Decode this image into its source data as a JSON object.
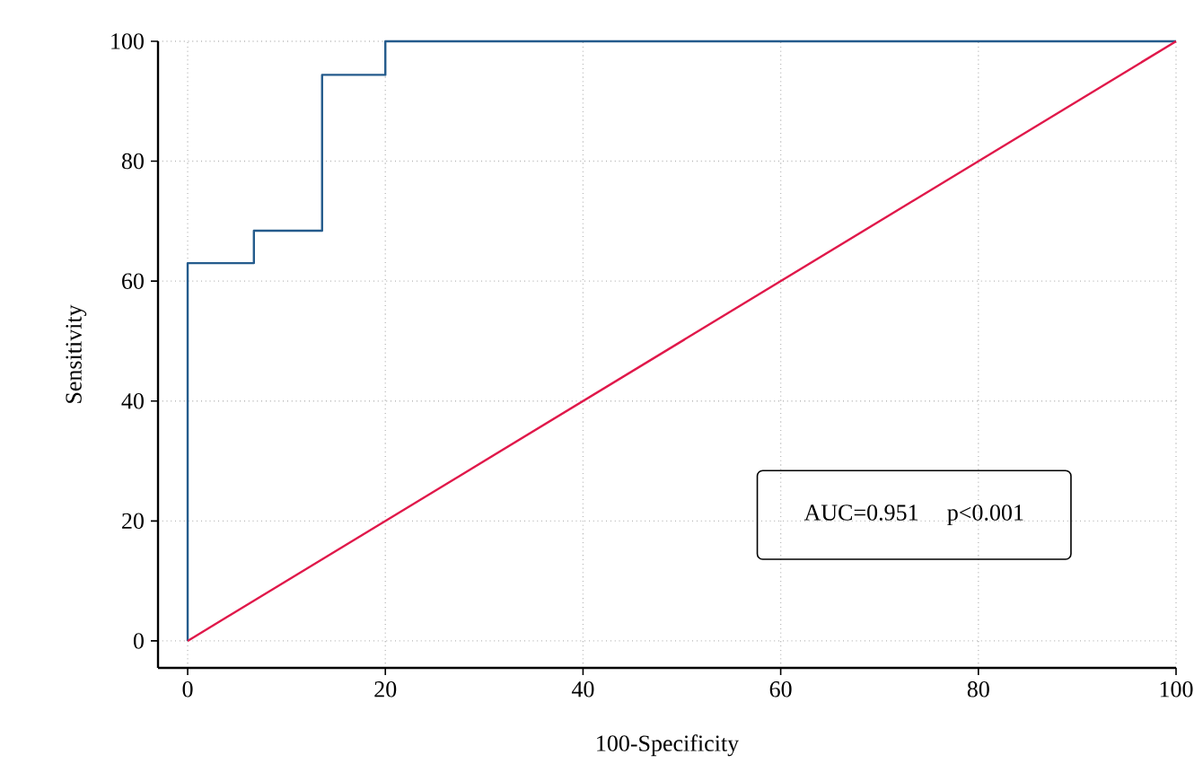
{
  "chart_data": {
    "type": "line",
    "xlabel": "100-Specificity",
    "ylabel": "Sensitivity",
    "series": [
      {
        "color": "#245b8c",
        "x": [
          0,
          0,
          6.7,
          6.7,
          13.6,
          13.6,
          20,
          20,
          100
        ],
        "values": [
          0,
          63,
          63,
          68.4,
          68.4,
          94.4,
          94.4,
          100,
          100
        ]
      },
      {
        "color": "#e0184a",
        "x": [
          0,
          100
        ],
        "values": [
          0,
          100
        ]
      }
    ],
    "xlim": [
      -3,
      100
    ],
    "ylim": [
      -4.5,
      100
    ],
    "xticks": [
      0,
      20,
      40,
      60,
      80,
      100
    ],
    "yticks": [
      0,
      20,
      40,
      60,
      80,
      100
    ],
    "grid": true,
    "marker": "none",
    "line_style": "solid",
    "annotations": [
      "AUC=0.951",
      "p<0.001"
    ]
  }
}
